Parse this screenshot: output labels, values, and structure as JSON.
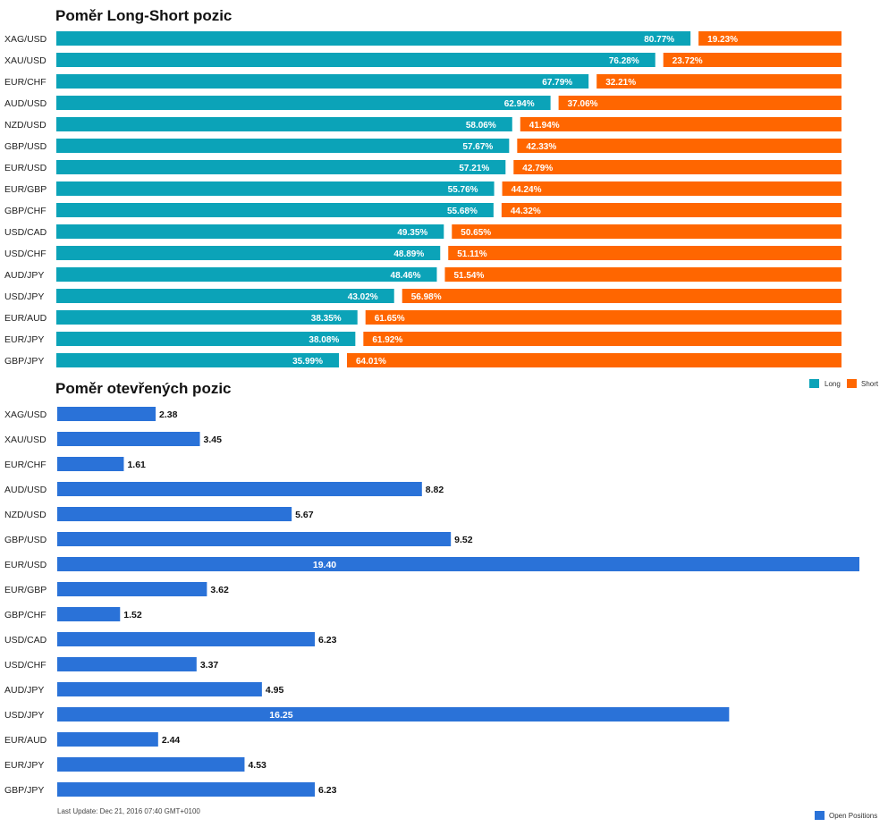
{
  "colors": {
    "long": "#0ba3b8",
    "short": "#ff6600",
    "open": "#2a72d8"
  },
  "chart_data": [
    {
      "type": "bar",
      "title": "Poměr Long-Short pozic",
      "categories": [
        "XAG/USD",
        "XAU/USD",
        "EUR/CHF",
        "AUD/USD",
        "NZD/USD",
        "GBP/USD",
        "EUR/USD",
        "EUR/GBP",
        "GBP/CHF",
        "USD/CAD",
        "USD/CHF",
        "AUD/JPY",
        "USD/JPY",
        "EUR/AUD",
        "EUR/JPY",
        "GBP/JPY"
      ],
      "series": [
        {
          "name": "Long",
          "values": [
            80.77,
            76.28,
            67.79,
            62.94,
            58.06,
            57.67,
            57.21,
            55.76,
            55.68,
            49.35,
            48.89,
            48.46,
            43.02,
            38.35,
            38.08,
            35.99
          ],
          "labels": [
            "80.77%",
            "76.28%",
            "67.79%",
            "62.94%",
            "58.06%",
            "57.67%",
            "57.21%",
            "55.76%",
            "55.68%",
            "49.35%",
            "48.89%",
            "48.46%",
            "43.02%",
            "38.35%",
            "38.08%",
            "35.99%"
          ]
        },
        {
          "name": "Short",
          "values": [
            19.23,
            23.72,
            32.21,
            37.06,
            41.94,
            42.33,
            42.79,
            44.24,
            44.32,
            50.65,
            51.11,
            51.54,
            56.98,
            61.65,
            61.92,
            64.01
          ],
          "labels": [
            "19.23%",
            "23.72%",
            "32.21%",
            "37.06%",
            "41.94%",
            "42.33%",
            "42.79%",
            "44.24%",
            "44.32%",
            "50.65%",
            "51.11%",
            "51.54%",
            "56.98%",
            "61.65%",
            "61.92%",
            "64.01%"
          ]
        }
      ],
      "stacked": true,
      "legend_position": "bottom-right"
    },
    {
      "type": "bar",
      "title": "Poměr otevřených pozic",
      "categories": [
        "XAG/USD",
        "XAU/USD",
        "EUR/CHF",
        "AUD/USD",
        "NZD/USD",
        "GBP/USD",
        "EUR/USD",
        "EUR/GBP",
        "GBP/CHF",
        "USD/CAD",
        "USD/CHF",
        "AUD/JPY",
        "USD/JPY",
        "EUR/AUD",
        "EUR/JPY",
        "GBP/JPY"
      ],
      "series": [
        {
          "name": "Open Positions",
          "values": [
            2.38,
            3.45,
            1.61,
            8.82,
            5.67,
            9.52,
            19.4,
            3.62,
            1.52,
            6.23,
            3.37,
            4.95,
            16.25,
            2.44,
            4.53,
            6.23
          ],
          "labels": [
            "2.38",
            "3.45",
            "1.61",
            "8.82",
            "5.67",
            "9.52",
            "19.40",
            "3.62",
            "1.52",
            "6.23",
            "3.37",
            "4.95",
            "16.25",
            "2.44",
            "4.53",
            "6.23"
          ]
        }
      ],
      "xlim": [
        0,
        19.4
      ],
      "legend_position": "bottom-right"
    }
  ],
  "footer": "Last Update: Dec 21, 2016 07:40 GMT+0100"
}
